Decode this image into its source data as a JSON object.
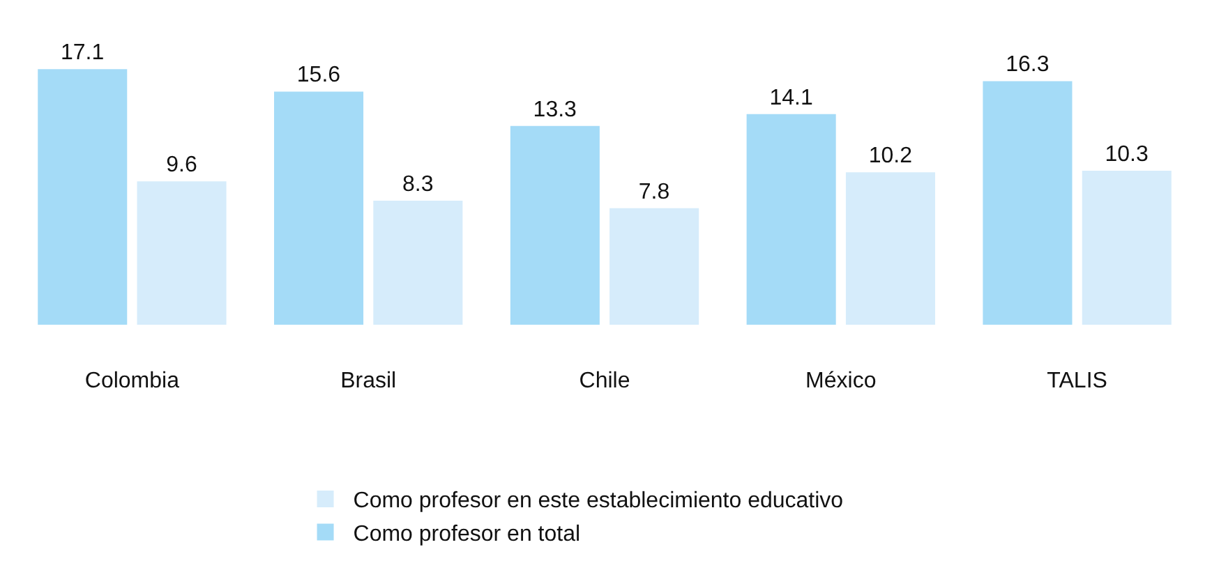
{
  "chart_data": {
    "type": "bar",
    "categories": [
      "Colombia",
      "Brasil",
      "Chile",
      "México",
      "TALIS"
    ],
    "series": [
      {
        "name": "Como profesor en total",
        "color": "#a4dbf7",
        "values": [
          17.1,
          15.6,
          13.3,
          14.1,
          16.3
        ]
      },
      {
        "name": "Como profesor en este establecimiento educativo",
        "color": "#d6ecfb",
        "values": [
          9.6,
          8.3,
          7.8,
          10.2,
          10.3
        ]
      }
    ],
    "data_labels": true,
    "legend": "bottom",
    "tick_labels": "x"
  }
}
